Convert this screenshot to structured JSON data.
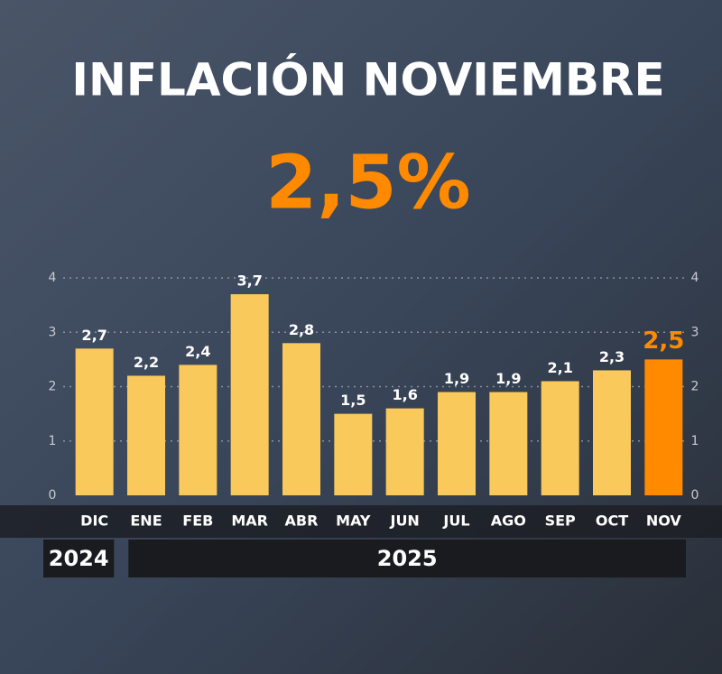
{
  "chart_data": {
    "type": "bar",
    "title": "INFLACIÓN NOVIEMBRE",
    "subtitle": "2,5%",
    "categories": [
      "DIC",
      "ENE",
      "FEB",
      "MAR",
      "ABR",
      "MAY",
      "JUN",
      "JUL",
      "AGO",
      "SEP",
      "OCT",
      "NOV"
    ],
    "values": [
      2.7,
      2.2,
      2.4,
      3.7,
      2.8,
      1.5,
      1.6,
      1.9,
      1.9,
      2.1,
      2.3,
      2.5
    ],
    "value_labels": [
      "2,7",
      "2,2",
      "2,4",
      "3,7",
      "2,8",
      "1,5",
      "1,6",
      "1,9",
      "1,9",
      "2,1",
      "2,3",
      "2,5"
    ],
    "color": "#f9c95c",
    "colors": [
      "#f9c95c",
      "#f9c95c",
      "#f9c95c",
      "#f9c95c",
      "#f9c95c",
      "#f9c95c",
      "#f9c95c",
      "#f9c95c",
      "#f9c95c",
      "#f9c95c",
      "#f9c95c",
      "#ff8a00"
    ],
    "groups": [
      {
        "label": "2024",
        "count": 1
      },
      {
        "label": "2025",
        "count": 11
      }
    ],
    "ylim": [
      0,
      4
    ],
    "yticks": [
      0,
      1,
      2,
      3,
      4
    ],
    "grid": true
  }
}
